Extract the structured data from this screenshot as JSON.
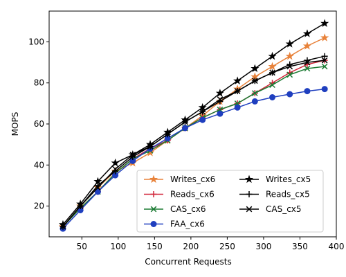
{
  "chart_data": {
    "type": "line",
    "xlabel": "Concurrent Requests",
    "ylabel": "MOPS",
    "xlim": [
      5,
      400
    ],
    "ylim": [
      5,
      115
    ],
    "xticks": [
      50,
      100,
      150,
      200,
      250,
      300,
      350,
      400
    ],
    "yticks": [
      20,
      40,
      60,
      80,
      100
    ],
    "grid": false,
    "legend_placement": "lower-right",
    "legend_columns": 2,
    "x": [
      24,
      48,
      72,
      96,
      120,
      144,
      168,
      192,
      216,
      240,
      264,
      288,
      312,
      336,
      360,
      384
    ],
    "series": [
      {
        "name": "Writes_cx6",
        "color": "#e8823a",
        "marker": "star",
        "values": [
          10,
          20,
          29,
          37,
          41,
          46,
          52,
          58,
          64,
          71,
          77,
          83,
          88,
          93,
          98,
          102
        ]
      },
      {
        "name": "Reads_cx6",
        "color": "#d1263a",
        "marker": "plus",
        "values": [
          10,
          19,
          27,
          36,
          43,
          48,
          52,
          58,
          63,
          67,
          70,
          75,
          80,
          85,
          89,
          91
        ]
      },
      {
        "name": "CAS_cx6",
        "color": "#1a7a32",
        "marker": "x",
        "values": [
          10,
          19,
          27,
          36,
          43,
          47,
          52,
          58,
          63,
          67,
          70,
          75,
          79,
          84,
          87,
          88
        ]
      },
      {
        "name": "FAA_cx6",
        "color": "#1f3fbf",
        "marker": "circle",
        "values": [
          9,
          18,
          27,
          35,
          42,
          48,
          53,
          58,
          62,
          65,
          68,
          71,
          73,
          74.5,
          76,
          77
        ]
      },
      {
        "name": "Writes_cx5",
        "color": "#000000",
        "marker": "star",
        "values": [
          11,
          21,
          32,
          41,
          45,
          50,
          56,
          62,
          68,
          75,
          81,
          87,
          93,
          99,
          104,
          109
        ]
      },
      {
        "name": "Reads_cx5",
        "color": "#000000",
        "marker": "plus",
        "values": [
          10,
          20,
          30,
          37,
          44,
          49,
          55,
          61,
          66,
          71,
          76,
          81,
          85,
          89,
          91,
          93
        ]
      },
      {
        "name": "CAS_cx5",
        "color": "#000000",
        "marker": "x",
        "values": [
          10,
          20,
          29,
          38,
          45,
          49,
          55,
          61,
          66,
          72,
          76,
          81,
          85,
          88,
          90,
          91
        ]
      }
    ]
  }
}
